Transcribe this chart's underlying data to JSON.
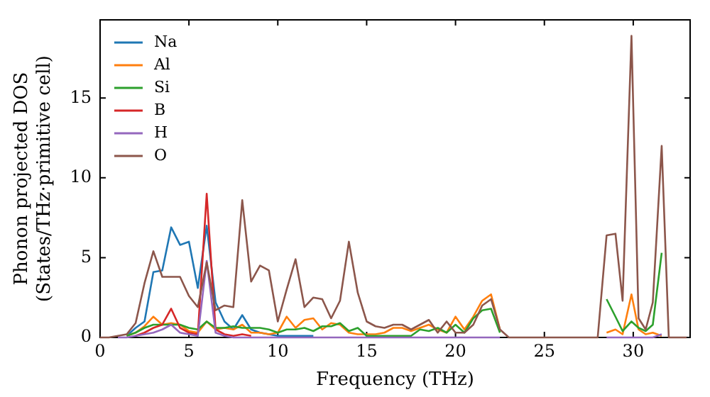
{
  "chart_data": {
    "type": "line",
    "xlabel": "Frequency (THz)",
    "ylabel": "Phonon projected DOS\n(States/THz·primitive cell)",
    "x": [
      0,
      0.5,
      1,
      1.5,
      2,
      2.5,
      3,
      3.5,
      4,
      4.5,
      5,
      5.5,
      6,
      6.5,
      7,
      7.5,
      8,
      8.5,
      9,
      9.5,
      10,
      10.5,
      11,
      11.5,
      12,
      12.5,
      13,
      13.5,
      14,
      14.5,
      15,
      15.5,
      16,
      16.5,
      17,
      17.5,
      18,
      18.5,
      19,
      19.5,
      20,
      20.5,
      21,
      21.5,
      22,
      22.5,
      23,
      28,
      28.5,
      29,
      29.4,
      29.9,
      30.3,
      30.7,
      31.1,
      31.6,
      32,
      33
    ],
    "xlim": [
      0,
      33.2
    ],
    "xticks": [
      0,
      5,
      10,
      15,
      20,
      25,
      30
    ],
    "ylim": [
      0,
      19.9
    ],
    "yticks": [
      0,
      5,
      10,
      15
    ],
    "legend": "top left",
    "grid": false,
    "marker": "none",
    "line_style": "solid",
    "series": [
      {
        "name": "Na",
        "color": "#1f77b4",
        "values": [
          null,
          null,
          null,
          0.1,
          0.6,
          1.0,
          4.1,
          4.2,
          6.9,
          5.8,
          6.0,
          3.1,
          7.0,
          2.2,
          1.0,
          0.5,
          1.4,
          0.5,
          0.3,
          0.2,
          0.1,
          0.1,
          0.1,
          0.1,
          0.1,
          null,
          null,
          null,
          null,
          null,
          null,
          null,
          null,
          null,
          null,
          null,
          null,
          null,
          null,
          null,
          null,
          null,
          null,
          null,
          null,
          null,
          null,
          null,
          null,
          null,
          null,
          null,
          null,
          null,
          null,
          null,
          null,
          null
        ]
      },
      {
        "name": "Al",
        "color": "#ff7f0e",
        "values": [
          null,
          null,
          null,
          0.1,
          0.3,
          0.7,
          1.3,
          0.8,
          0.9,
          0.8,
          0.4,
          0.3,
          1.0,
          0.5,
          0.6,
          0.5,
          0.8,
          0.3,
          0.3,
          0.2,
          0.3,
          1.3,
          0.6,
          1.1,
          1.2,
          0.5,
          0.9,
          0.8,
          0.3,
          0.2,
          0.2,
          0.2,
          0.3,
          0.6,
          0.6,
          0.4,
          0.6,
          0.8,
          0.5,
          0.3,
          1.3,
          0.5,
          1.3,
          2.3,
          2.7,
          0.5,
          null,
          null,
          0.3,
          0.5,
          0.2,
          2.7,
          0.5,
          0.2,
          0.3,
          0.1,
          null,
          null
        ]
      },
      {
        "name": "Si",
        "color": "#2ca02c",
        "values": [
          null,
          null,
          null,
          0.1,
          0.3,
          0.6,
          0.8,
          0.8,
          0.8,
          0.8,
          0.6,
          0.5,
          1.0,
          0.6,
          0.6,
          0.7,
          0.6,
          0.6,
          0.6,
          0.5,
          0.3,
          0.5,
          0.5,
          0.6,
          0.4,
          0.7,
          0.7,
          0.9,
          0.4,
          0.6,
          0.1,
          0.1,
          0.1,
          0.1,
          0.1,
          0.1,
          0.5,
          0.4,
          0.6,
          0.3,
          0.8,
          0.3,
          1.2,
          1.7,
          1.8,
          0.3,
          null,
          null,
          2.4,
          1.3,
          0.4,
          1.0,
          0.6,
          0.4,
          0.8,
          5.3,
          null,
          null
        ]
      },
      {
        "name": "B",
        "color": "#d62728",
        "values": [
          null,
          null,
          null,
          null,
          0.1,
          0.3,
          0.6,
          0.8,
          1.8,
          0.6,
          0.3,
          0.2,
          9.0,
          0.5,
          0.2,
          0.1,
          0.2,
          0.1,
          null,
          null,
          null,
          null,
          null,
          null,
          null,
          null,
          null,
          null,
          null,
          null,
          null,
          null,
          null,
          null,
          null,
          null,
          null,
          null,
          null,
          null,
          null,
          null,
          null,
          null,
          null,
          null,
          null,
          null,
          null,
          null,
          null,
          null,
          null,
          null,
          null,
          null,
          null,
          null
        ]
      },
      {
        "name": "H",
        "color": "#9467bd",
        "values": [
          null,
          null,
          0,
          0,
          0.1,
          0.2,
          0.3,
          0.5,
          0.8,
          0.3,
          0.2,
          0.1,
          4.8,
          0.3,
          0.1,
          0,
          0,
          0,
          0,
          0,
          0,
          0,
          0,
          0,
          0,
          0,
          0,
          0,
          0,
          0,
          0,
          0,
          0,
          0,
          0,
          0,
          0,
          0,
          0,
          0,
          0,
          0,
          0,
          0,
          0,
          0,
          null,
          null,
          0,
          0,
          0,
          0,
          0,
          0,
          0,
          0.2,
          null,
          null
        ]
      },
      {
        "name": "O",
        "color": "#8c564b",
        "values": [
          0,
          0,
          0.1,
          0.2,
          0.9,
          3.4,
          5.4,
          3.8,
          3.8,
          3.8,
          2.6,
          1.9,
          4.7,
          1.7,
          2.0,
          1.9,
          8.6,
          3.5,
          4.5,
          4.2,
          1.0,
          3.0,
          4.9,
          1.9,
          2.5,
          2.4,
          1.2,
          2.3,
          6.0,
          2.8,
          1.0,
          0.7,
          0.6,
          0.8,
          0.8,
          0.5,
          0.8,
          1.1,
          0.3,
          1.0,
          0.3,
          0.3,
          0.8,
          2.0,
          2.4,
          0.5,
          0,
          0,
          6.4,
          6.5,
          2.3,
          18.9,
          1.2,
          0.5,
          2.2,
          12.0,
          0,
          0
        ]
      }
    ]
  }
}
